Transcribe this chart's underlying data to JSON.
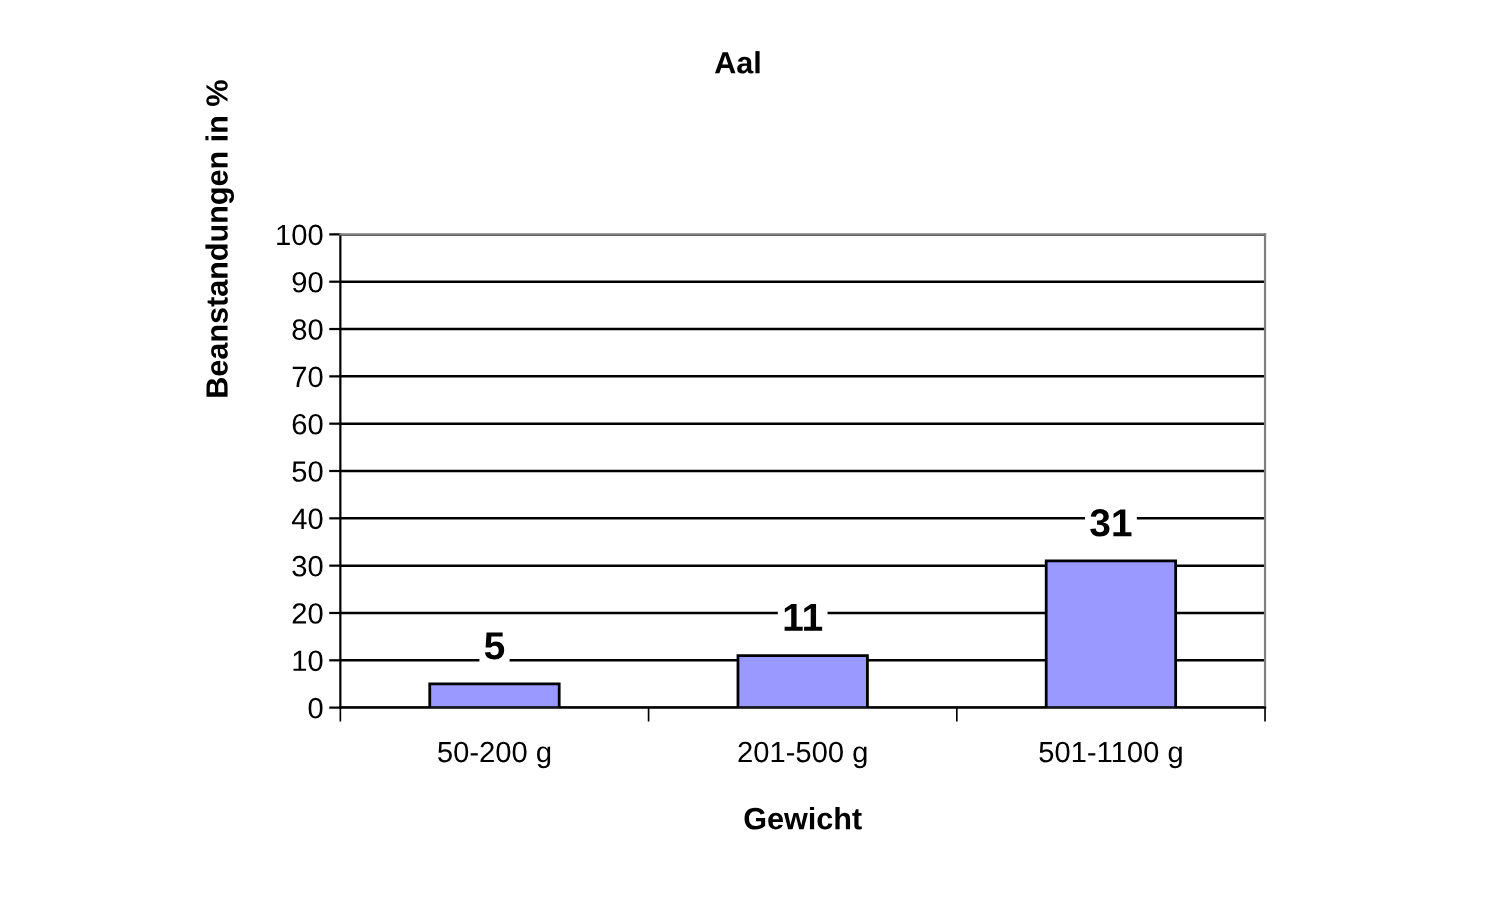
{
  "chart_data": {
    "type": "bar",
    "title": "Aal",
    "xlabel": "Gewicht",
    "ylabel": "Beanstandungen in %",
    "categories": [
      "50-200 g",
      "201-500 g",
      "501-1100 g"
    ],
    "values": [
      5,
      11,
      31
    ],
    "color": "#9999ff",
    "data_labels": true,
    "ylim": [
      0,
      100
    ],
    "yticks": [
      0,
      10,
      20,
      30,
      40,
      50,
      60,
      70,
      80,
      90,
      100
    ],
    "grid": "y"
  }
}
